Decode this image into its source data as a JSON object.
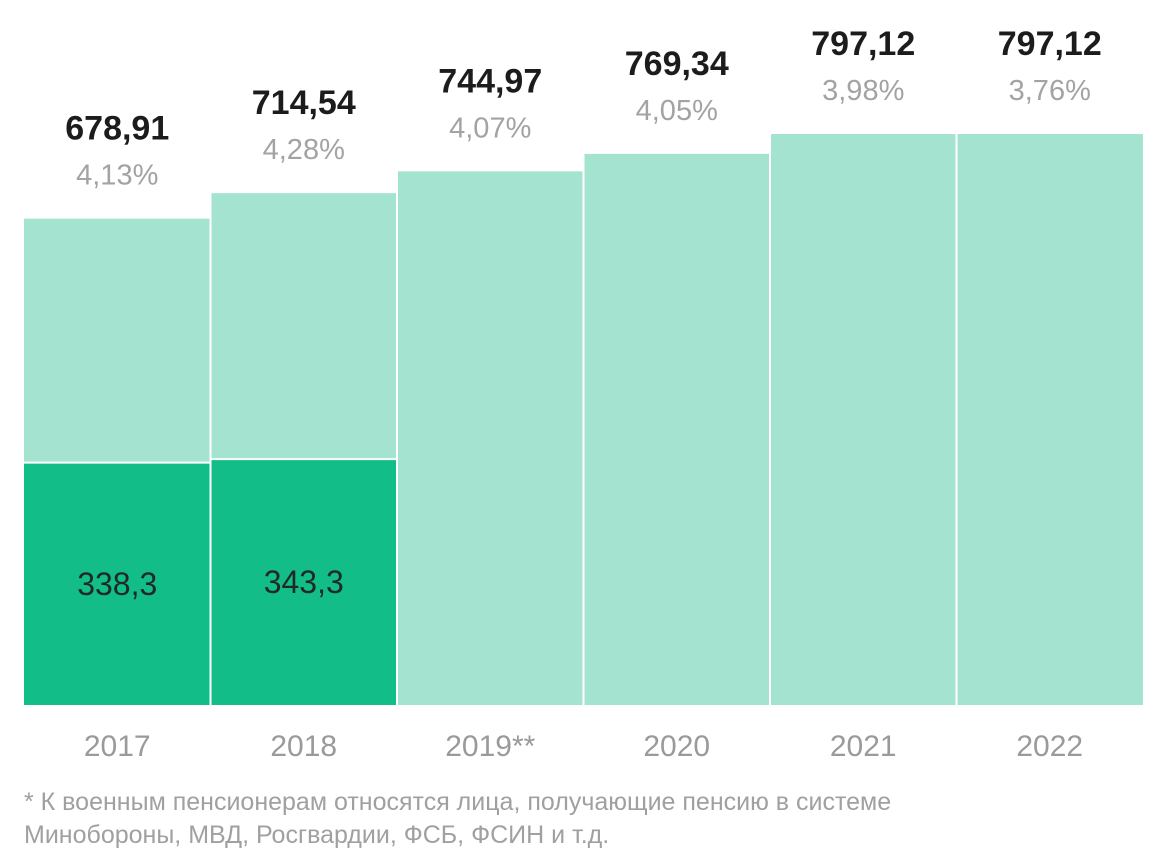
{
  "chart_data": {
    "type": "bar",
    "categories": [
      "2017",
      "2018",
      "2019**",
      "2020",
      "2021",
      "2022"
    ],
    "totals": [
      678.91,
      714.54,
      744.97,
      769.34,
      797.12,
      797.12
    ],
    "total_labels": [
      "678,91",
      "714,54",
      "744,97",
      "769,34",
      "797,12",
      "797,12"
    ],
    "percent_labels": [
      "4,13%",
      "4,28%",
      "4,07%",
      "4,05%",
      "3,98%",
      "3,76%"
    ],
    "inner_values": [
      338.3,
      343.3,
      null,
      null,
      null,
      null
    ],
    "inner_labels": [
      "338,3",
      "343,3",
      "",
      "",
      "",
      ""
    ],
    "ylim": [
      0,
      797.12
    ],
    "colors": {
      "total_bar": "#a3e3cf",
      "inner_bar": "#13bd88",
      "separator": "#ffffff"
    }
  },
  "footnote": "* К военным пенсионерам относятся лица, получающие пенсию в системе\nМинобороны, МВД, Росгвардии, ФСБ, ФСИН и т.д."
}
